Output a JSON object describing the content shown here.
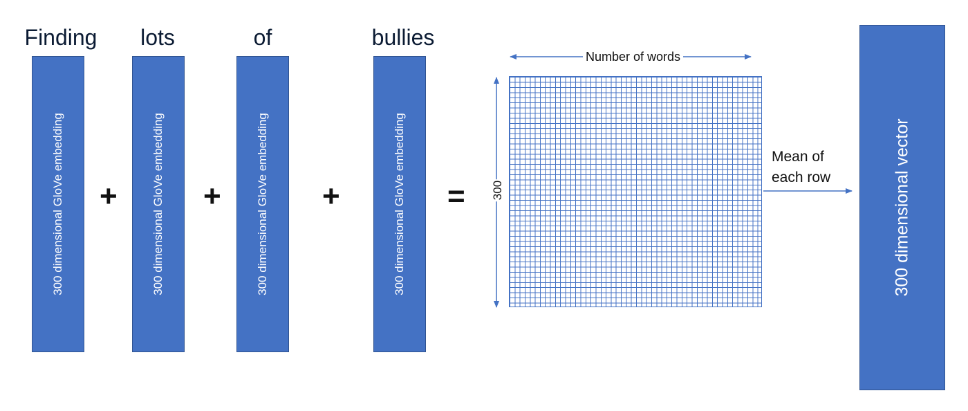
{
  "words": [
    {
      "text": "Finding",
      "embedding_label": "300 dimensional GloVe embedding"
    },
    {
      "text": "lots",
      "embedding_label": "300 dimensional GloVe embedding"
    },
    {
      "text": "of",
      "embedding_label": "300 dimensional GloVe embedding"
    },
    {
      "text": "bullies",
      "embedding_label": "300 dimensional GloVe embedding"
    }
  ],
  "operators": {
    "plus": "+",
    "equals": "="
  },
  "matrix": {
    "width_label": "Number of words",
    "height_label": "300"
  },
  "mean_label": {
    "line1": "Mean of",
    "line2": "each row"
  },
  "result_label": "300 dimensional vector",
  "colors": {
    "box_fill": "#4472c4",
    "grid_line": "#4472c4"
  }
}
